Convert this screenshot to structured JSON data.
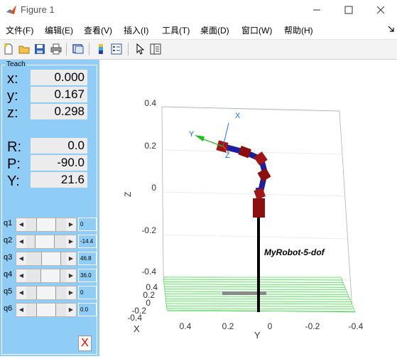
{
  "window": {
    "title": "Figure 1"
  },
  "menu": [
    "文件(F)",
    "编辑(E)",
    "查看(V)",
    "插入(I)",
    "工具(T)",
    "桌面(D)",
    "窗口(W)",
    "帮助(H)"
  ],
  "teach": {
    "title": "Teach",
    "pose": [
      {
        "label": "x:",
        "value": "0.000"
      },
      {
        "label": "y:",
        "value": "0.167"
      },
      {
        "label": "z:",
        "value": "0.298"
      },
      {
        "label": "R:",
        "value": "0.0"
      },
      {
        "label": "P:",
        "value": "-90.0"
      },
      {
        "label": "Y:",
        "value": "21.6"
      }
    ],
    "joints": [
      {
        "label": "q1",
        "value": "0",
        "fraction": 0.5
      },
      {
        "label": "q2",
        "value": "-14.4",
        "fraction": 0.43
      },
      {
        "label": "q3",
        "value": "46.8",
        "fraction": 0.76
      },
      {
        "label": "q4",
        "value": "36.0",
        "fraction": 0.7
      },
      {
        "label": "q5",
        "value": "0",
        "fraction": 0.5
      },
      {
        "label": "q6",
        "value": "0.0",
        "fraction": 0.5
      }
    ],
    "close_label": "X"
  },
  "plot": {
    "robot_name": "MyRobot-5-dof",
    "z_axis": {
      "label": "Z",
      "ticks": [
        "0.4",
        "0.2",
        "0",
        "-0.2",
        "-0.4"
      ]
    },
    "x_axis": {
      "label": "X",
      "ticks": [
        "0.4",
        "0.2",
        "0",
        "-0.2",
        "-0.4"
      ]
    },
    "y_axis": {
      "label": "Y",
      "ticks": [
        "0.4",
        "0.2",
        "0",
        "-0.2",
        "-0.4"
      ]
    },
    "frame_labels": {
      "x": "X",
      "y": "Y",
      "z": "Z"
    },
    "colors": {
      "link": "#1f1f9e",
      "joint": "#8b0f0f",
      "floor": "#20c020",
      "base": "#888888",
      "pole": "#000000"
    }
  }
}
